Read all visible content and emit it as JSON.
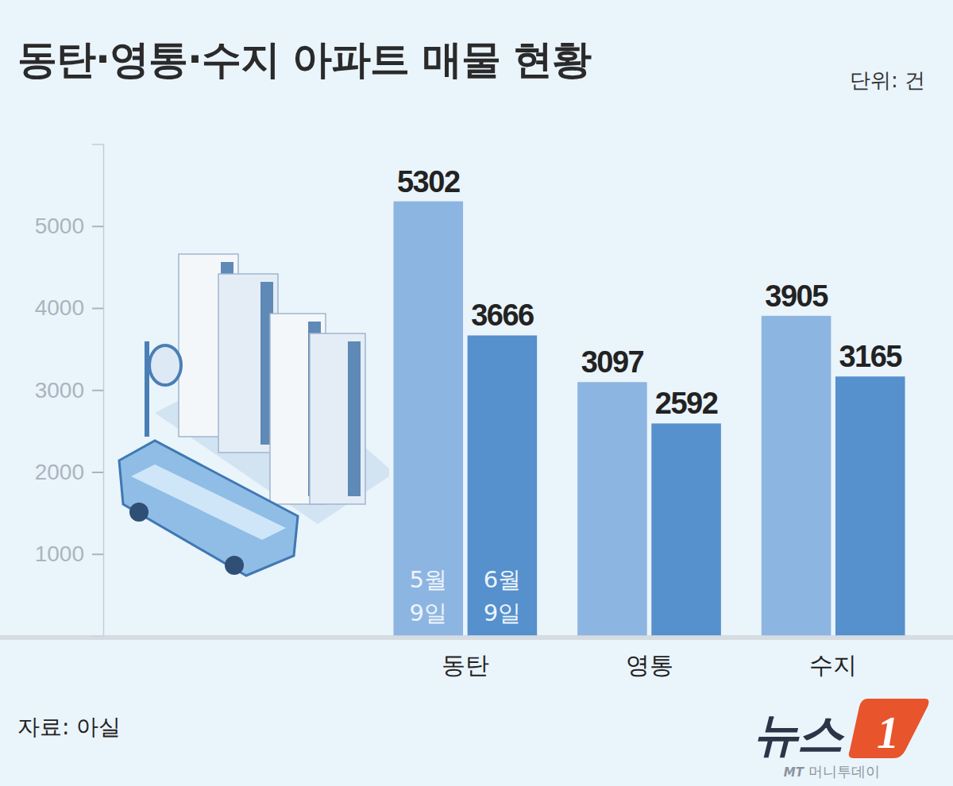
{
  "chart_data": {
    "type": "bar",
    "title": "동탄·영통·수지 아파트 매물 현황",
    "annotations": [
      "단위: 건",
      "자료: 아실",
      "뉴스",
      "1",
      "MT",
      "머니투데이"
    ],
    "categories": [
      "동탄",
      "영통",
      "수지"
    ],
    "series": [
      {
        "name": "5월 9일",
        "color": "#8db5e1",
        "values": [
          5302,
          3097,
          3905
        ]
      },
      {
        "name": "6월 9일",
        "color": "#5690cd",
        "values": [
          3666,
          2592,
          3165
        ]
      }
    ],
    "ylim": [
      0,
      6000
    ],
    "yticks": [
      1000,
      2000,
      3000,
      4000,
      5000
    ],
    "grid": false,
    "data_labels": true
  }
}
